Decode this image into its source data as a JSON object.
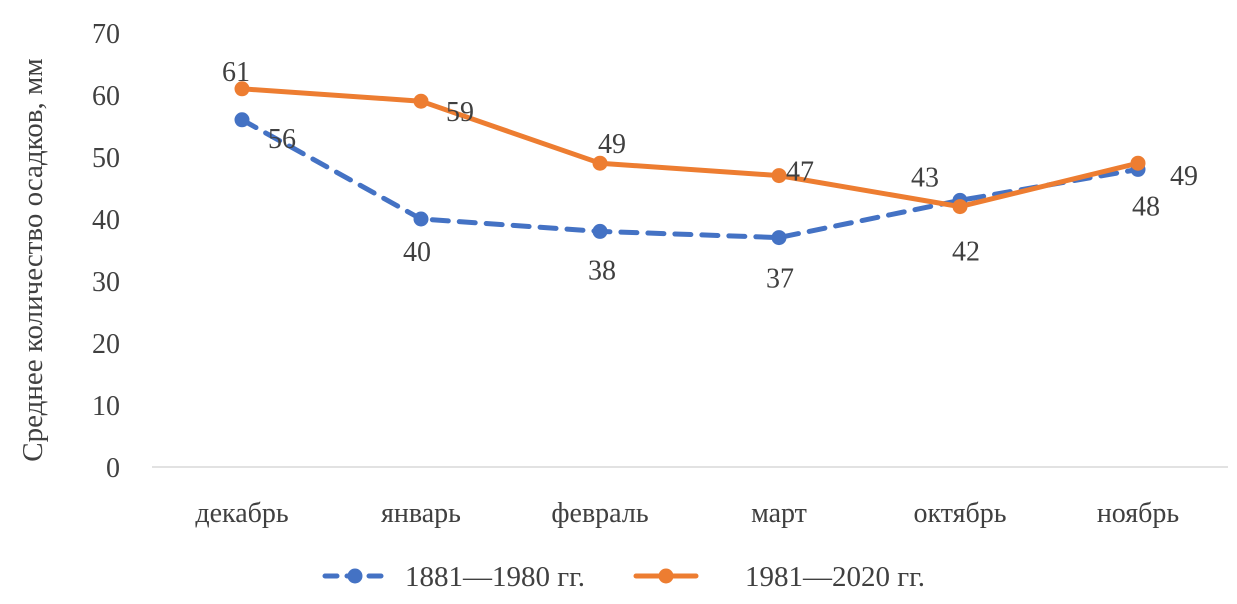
{
  "chart_data": {
    "type": "line",
    "title": "",
    "xlabel": "",
    "ylabel": "Среднее количество осадков, мм",
    "categories": [
      "декабрь",
      "январь",
      "февраль",
      "март",
      "октябрь",
      "ноябрь"
    ],
    "ylim": [
      0,
      70
    ],
    "yticks": [
      0,
      10,
      20,
      30,
      40,
      50,
      60,
      70
    ],
    "grid": false,
    "legend_position": "bottom",
    "series": [
      {
        "name": "1881—1980 гг.",
        "values": [
          56,
          40,
          38,
          37,
          43,
          48
        ],
        "color": "#4472C4",
        "dash": true
      },
      {
        "name": "1981—2020 гг.",
        "values": [
          61,
          59,
          49,
          47,
          42,
          49
        ],
        "color": "#ED7D31",
        "dash": false
      }
    ]
  }
}
